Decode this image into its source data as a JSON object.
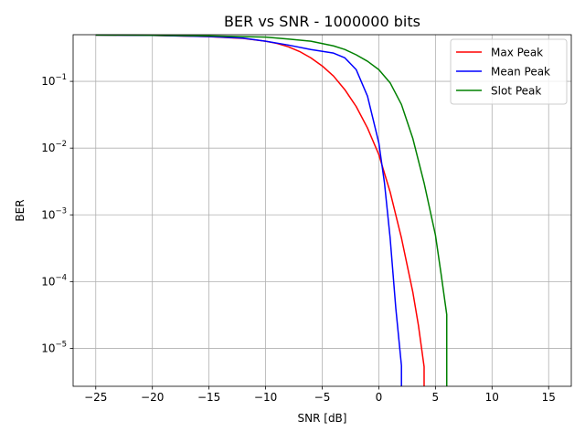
{
  "chart_data": {
    "type": "line",
    "title": "BER vs SNR - 1000000 bits",
    "xlabel": "SNR [dB]",
    "ylabel": "BER",
    "xlim": [
      -27,
      17
    ],
    "ylim": [
      2.7e-06,
      0.5
    ],
    "yscale": "log",
    "grid": true,
    "legend_position": "top-right",
    "x_ticks": [
      {
        "value": -25,
        "label": "−25"
      },
      {
        "value": -20,
        "label": "−20"
      },
      {
        "value": -15,
        "label": "−15"
      },
      {
        "value": -10,
        "label": "−10"
      },
      {
        "value": -5,
        "label": "−5"
      },
      {
        "value": 0,
        "label": "0"
      },
      {
        "value": 5,
        "label": "5"
      },
      {
        "value": 10,
        "label": "10"
      },
      {
        "value": 15,
        "label": "15"
      }
    ],
    "y_ticks": [
      {
        "value": 0.1,
        "base": "10",
        "exp": "−1"
      },
      {
        "value": 0.01,
        "base": "10",
        "exp": "−2"
      },
      {
        "value": 0.001,
        "base": "10",
        "exp": "−3"
      },
      {
        "value": 0.0001,
        "base": "10",
        "exp": "−4"
      },
      {
        "value": 1e-05,
        "base": "10",
        "exp": "−5"
      }
    ],
    "series": [
      {
        "name": "Max Peak",
        "color": "#ff0000",
        "points": [
          [
            -25,
            0.495
          ],
          [
            -20,
            0.488
          ],
          [
            -15,
            0.468
          ],
          [
            -12,
            0.44
          ],
          [
            -10,
            0.4
          ],
          [
            -9,
            0.37
          ],
          [
            -8,
            0.33
          ],
          [
            -7,
            0.28
          ],
          [
            -6,
            0.225
          ],
          [
            -5,
            0.17
          ],
          [
            -4,
            0.12
          ],
          [
            -3,
            0.075
          ],
          [
            -2,
            0.042
          ],
          [
            -1,
            0.02
          ],
          [
            0,
            0.008
          ],
          [
            1,
            0.0022
          ],
          [
            2,
            0.00045
          ],
          [
            3,
            7e-05
          ],
          [
            3.5,
            2.2e-05
          ],
          [
            4,
            5.3e-06
          ],
          [
            4,
            2.7e-06
          ]
        ]
      },
      {
        "name": "Mean Peak",
        "color": "#0000ff",
        "points": [
          [
            -25,
            0.495
          ],
          [
            -20,
            0.488
          ],
          [
            -15,
            0.47
          ],
          [
            -12,
            0.445
          ],
          [
            -10,
            0.4
          ],
          [
            -8,
            0.35
          ],
          [
            -6,
            0.3
          ],
          [
            -4,
            0.265
          ],
          [
            -3,
            0.225
          ],
          [
            -2,
            0.15
          ],
          [
            -1,
            0.06
          ],
          [
            0,
            0.012
          ],
          [
            0.5,
            0.003
          ],
          [
            1,
            0.00045
          ],
          [
            1.5,
            4e-05
          ],
          [
            2,
            5.5e-06
          ],
          [
            2,
            2.7e-06
          ]
        ]
      },
      {
        "name": "Slot Peak",
        "color": "#008000",
        "points": [
          [
            -25,
            0.495
          ],
          [
            -20,
            0.49
          ],
          [
            -15,
            0.48
          ],
          [
            -10,
            0.46
          ],
          [
            -8,
            0.43
          ],
          [
            -6,
            0.4
          ],
          [
            -4,
            0.34
          ],
          [
            -3,
            0.3
          ],
          [
            -2,
            0.25
          ],
          [
            -1,
            0.2
          ],
          [
            0,
            0.15
          ],
          [
            1,
            0.095
          ],
          [
            2,
            0.045
          ],
          [
            3,
            0.014
          ],
          [
            4,
            0.003
          ],
          [
            5,
            0.0005
          ],
          [
            5.5,
            0.00013
          ],
          [
            6,
            3.2e-05
          ],
          [
            6,
            2.7e-06
          ]
        ]
      }
    ]
  }
}
